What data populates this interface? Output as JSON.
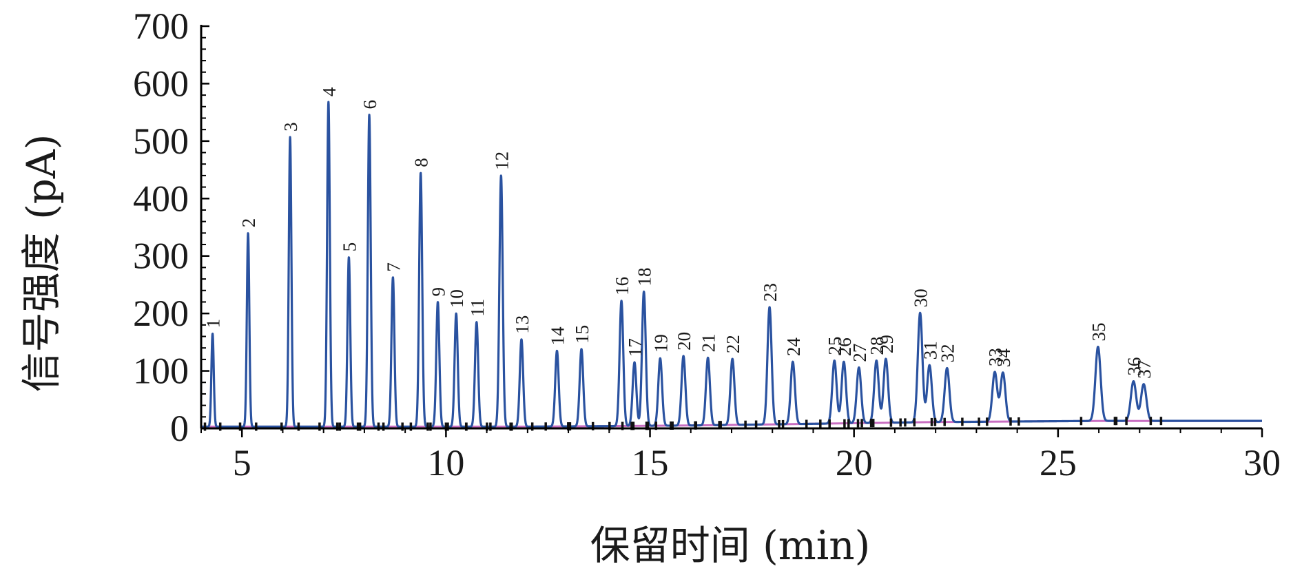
{
  "chart_data": {
    "type": "line",
    "title": "",
    "xlabel": "保留时间 (min)",
    "ylabel": "信号强度 (pA)",
    "xlim": [
      4,
      30
    ],
    "ylim": [
      0,
      700
    ],
    "x_ticks": [
      5,
      10,
      15,
      20,
      25,
      30
    ],
    "x_tick_labels": [
      "5",
      "10",
      "15",
      "20",
      "25",
      "30"
    ],
    "y_ticks": [
      0,
      100,
      200,
      300,
      400,
      500,
      600,
      700
    ],
    "y_tick_labels": [
      "0",
      "100",
      "200",
      "300",
      "400",
      "500",
      "600",
      "700"
    ],
    "grid": false,
    "legend": "none",
    "line_color": "#2a52a0",
    "baseline_color": "#c96fc2",
    "marker_color": "#111111",
    "baseline": {
      "x": [
        4,
        6,
        8,
        10,
        12,
        14,
        16,
        18,
        19,
        20,
        22,
        24,
        26,
        28,
        30
      ],
      "y": [
        3,
        3,
        3,
        3,
        3,
        4,
        5,
        7,
        8,
        9,
        11,
        12,
        13,
        13,
        13
      ]
    },
    "peaks": [
      {
        "label": "1",
        "rt": 4.28,
        "height": 165
      },
      {
        "label": "2",
        "rt": 5.15,
        "height": 340
      },
      {
        "label": "3",
        "rt": 6.18,
        "height": 507
      },
      {
        "label": "4",
        "rt": 7.12,
        "height": 568
      },
      {
        "label": "5",
        "rt": 7.62,
        "height": 298
      },
      {
        "label": "6",
        "rt": 8.12,
        "height": 546
      },
      {
        "label": "7",
        "rt": 8.7,
        "height": 263
      },
      {
        "label": "8",
        "rt": 9.38,
        "height": 445
      },
      {
        "label": "9",
        "rt": 9.8,
        "height": 220
      },
      {
        "label": "10",
        "rt": 10.25,
        "height": 200
      },
      {
        "label": "11",
        "rt": 10.75,
        "height": 185
      },
      {
        "label": "12",
        "rt": 11.35,
        "height": 440
      },
      {
        "label": "13",
        "rt": 11.85,
        "height": 155
      },
      {
        "label": "14",
        "rt": 12.72,
        "height": 135
      },
      {
        "label": "15",
        "rt": 13.32,
        "height": 138
      },
      {
        "label": "16",
        "rt": 14.3,
        "height": 222
      },
      {
        "label": "17",
        "rt": 14.62,
        "height": 115
      },
      {
        "label": "18",
        "rt": 14.85,
        "height": 238
      },
      {
        "label": "19",
        "rt": 15.25,
        "height": 122
      },
      {
        "label": "20",
        "rt": 15.82,
        "height": 126
      },
      {
        "label": "21",
        "rt": 16.42,
        "height": 123
      },
      {
        "label": "22",
        "rt": 17.02,
        "height": 121
      },
      {
        "label": "23",
        "rt": 17.93,
        "height": 211
      },
      {
        "label": "24",
        "rt": 18.5,
        "height": 116
      },
      {
        "label": "25",
        "rt": 19.52,
        "height": 118
      },
      {
        "label": "26",
        "rt": 19.75,
        "height": 116
      },
      {
        "label": "27",
        "rt": 20.12,
        "height": 106
      },
      {
        "label": "28",
        "rt": 20.55,
        "height": 118
      },
      {
        "label": "29",
        "rt": 20.78,
        "height": 121
      },
      {
        "label": "30",
        "rt": 21.62,
        "height": 201
      },
      {
        "label": "31",
        "rt": 21.85,
        "height": 110
      },
      {
        "label": "32",
        "rt": 22.28,
        "height": 105
      },
      {
        "label": "33",
        "rt": 23.45,
        "height": 98
      },
      {
        "label": "34",
        "rt": 23.65,
        "height": 97
      },
      {
        "label": "35",
        "rt": 25.98,
        "height": 142
      },
      {
        "label": "36",
        "rt": 26.85,
        "height": 82
      },
      {
        "label": "37",
        "rt": 27.1,
        "height": 77
      }
    ]
  }
}
